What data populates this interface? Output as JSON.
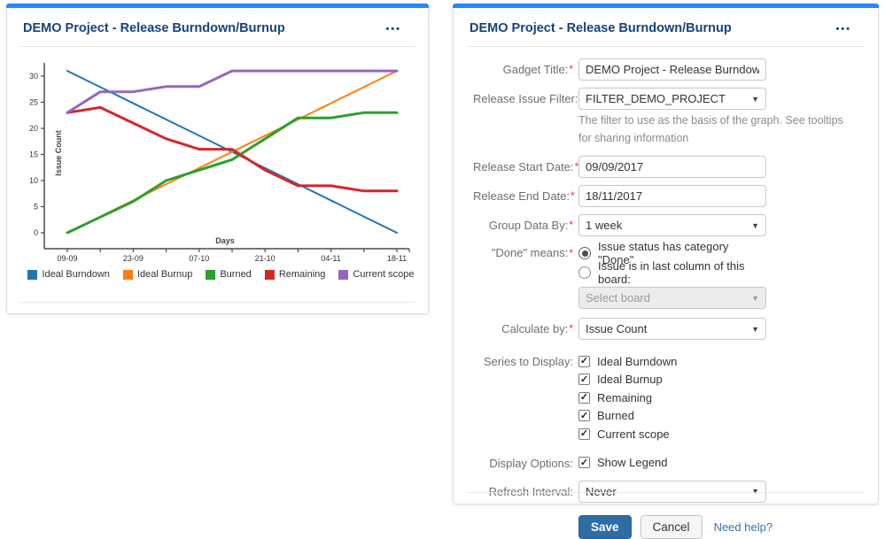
{
  "chart_gadget": {
    "title": "DEMO Project - Release Burndown/Burnup",
    "menu_icon": "ellipsis-icon"
  },
  "chart_data": {
    "type": "line",
    "title": "",
    "xlabel": "Days",
    "ylabel": "Issue Count",
    "x": [
      "09-09",
      "16-09",
      "23-09",
      "30-09",
      "07-10",
      "14-10",
      "21-10",
      "28-10",
      "04-11",
      "11-11",
      "18-11"
    ],
    "x_axis_labels": [
      "09-09",
      "23-09",
      "07-10",
      "21-10",
      "04-11",
      "18-11"
    ],
    "y_ticks": [
      0,
      5,
      10,
      15,
      20,
      25,
      30
    ],
    "ylim": [
      0,
      31
    ],
    "grid": false,
    "legend_position": "bottom",
    "series": [
      {
        "name": "Ideal Burndown",
        "color": "#1f77b4",
        "stroke_width": 2,
        "values": [
          31,
          27.9,
          24.8,
          21.7,
          18.6,
          15.5,
          12.4,
          9.3,
          6.2,
          3.1,
          0
        ]
      },
      {
        "name": "Ideal Burnup",
        "color": "#ff7f0e",
        "stroke_width": 2,
        "values": [
          0,
          3.1,
          6.2,
          9.3,
          12.4,
          15.5,
          18.6,
          21.7,
          24.8,
          27.9,
          31
        ]
      },
      {
        "name": "Burned",
        "color": "#2ca02c",
        "stroke_width": 3,
        "values": [
          0,
          3,
          6,
          10,
          12,
          14,
          18,
          22,
          22,
          23,
          23
        ]
      },
      {
        "name": "Remaining",
        "color": "#d62728",
        "stroke_width": 3,
        "values": [
          23,
          24,
          21,
          18,
          16,
          16,
          12,
          9,
          9,
          8,
          8
        ]
      },
      {
        "name": "Current scope",
        "color": "#9467bd",
        "stroke_width": 3,
        "values": [
          23,
          27,
          27,
          28,
          28,
          31,
          31,
          31,
          31,
          31,
          31
        ]
      }
    ]
  },
  "config_gadget": {
    "title": "DEMO Project - Release Burndown/Burnup",
    "gadget_title": {
      "label": "Gadget Title:",
      "required": true,
      "value": "DEMO Project - Release Burndown/Bu"
    },
    "release_issue_filter": {
      "label": "Release Issue Filter:",
      "required": true,
      "value": "FILTER_DEMO_PROJECT",
      "help": "The filter to use as the basis of the graph. See tooltips for sharing information"
    },
    "release_start_date": {
      "label": "Release Start Date:",
      "required": true,
      "value": "09/09/2017"
    },
    "release_end_date": {
      "label": "Release End Date:",
      "required": true,
      "value": "18/11/2017"
    },
    "group_data_by": {
      "label": "Group Data By:",
      "required": true,
      "value": "1 week"
    },
    "done_means": {
      "label": "\"Done\" means:",
      "required": true,
      "options": [
        {
          "label": "Issue status has category \"Done\"",
          "selected": true
        },
        {
          "label": "Issue is in last column of this board:",
          "selected": false
        }
      ],
      "board_select": {
        "placeholder": "Select board",
        "disabled": true
      }
    },
    "calculate_by": {
      "label": "Calculate by:",
      "required": true,
      "value": "Issue Count"
    },
    "series_to_display": {
      "label": "Series to Display:",
      "options": [
        {
          "label": "Ideal Burndown",
          "checked": true
        },
        {
          "label": "Ideal Burnup",
          "checked": true
        },
        {
          "label": "Remaining",
          "checked": true
        },
        {
          "label": "Burned",
          "checked": true
        },
        {
          "label": "Current scope",
          "checked": true
        }
      ]
    },
    "display_options": {
      "label": "Display Options:",
      "options": [
        {
          "label": "Show Legend",
          "checked": true
        }
      ]
    },
    "refresh_interval": {
      "label": "Refresh Interval:",
      "value": "Never"
    },
    "buttons": {
      "save": "Save",
      "cancel": "Cancel",
      "help_link": "Need help?"
    }
  },
  "colors": {
    "accent_bar": "#2684ff",
    "gadget_title_text": "#17427e",
    "save_button": "#2e6da4",
    "link": "#3572b0",
    "required_asterisk": "#e1392d"
  }
}
